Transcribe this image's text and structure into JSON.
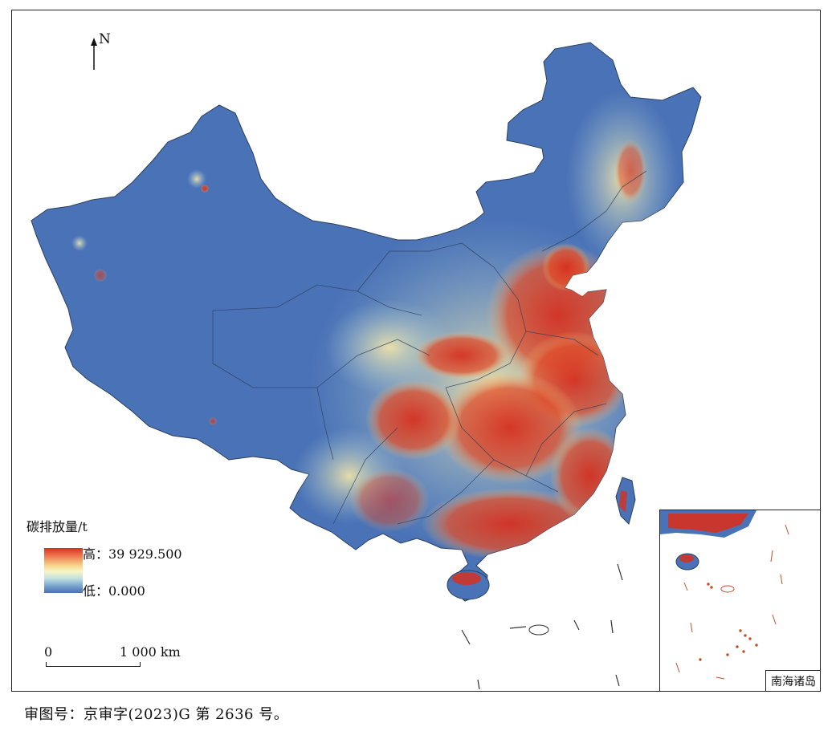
{
  "map": {
    "north_label": "N",
    "legend": {
      "title": "碳排放量/t",
      "high_label": "高：39 929.500",
      "low_label": "低：0.000",
      "ramp_colors": [
        "#d7301f",
        "#f07a50",
        "#f6d98f",
        "#fbf5c6",
        "#bfe0e0",
        "#7aa5cf",
        "#4a70b5"
      ]
    },
    "scale_bar": {
      "start_label": "0",
      "end_label": "1 000 km"
    },
    "inset": {
      "label": "南海诸岛"
    },
    "colors": {
      "low": "#4a72b6",
      "high": "#d7301f",
      "mid": "#f6e7a8",
      "border": "#2b3f5c"
    }
  },
  "caption": "审图号：京审字(2023)G 第 2636 号。"
}
